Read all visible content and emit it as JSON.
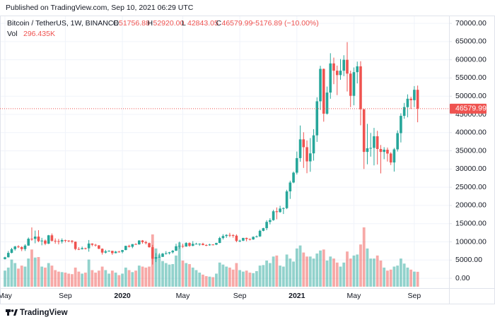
{
  "header": {
    "published": "Published on TradingView.com, Sep 10, 2021 06:29 UTC",
    "symbol": "Bitcoin / TetherUS, 1W, BINANCE",
    "ohlc": [
      {
        "key": "O",
        "value": "51756.88"
      },
      {
        "key": "H",
        "value": "52920.00"
      },
      {
        "key": "L",
        "value": "42843.05"
      },
      {
        "key": "C",
        "value": "46579.99"
      }
    ],
    "change": "−5176.89 (−10.00%)",
    "vol_key": "Vol",
    "vol_value": "296.435K"
  },
  "chart_data": {
    "type": "candlestick",
    "categories": [
      "May",
      null,
      null,
      null,
      null,
      null,
      null,
      null,
      null,
      null,
      null,
      null,
      null,
      null,
      null,
      null,
      null,
      null,
      "Sep",
      null,
      null,
      null,
      null,
      null,
      null,
      null,
      null,
      null,
      null,
      null,
      null,
      null,
      null,
      null,
      null,
      "2020",
      null,
      null,
      null,
      null,
      null,
      null,
      null,
      null,
      null,
      null,
      null,
      null,
      null,
      null,
      null,
      null,
      null,
      "May",
      null,
      null,
      null,
      null,
      null,
      null,
      null,
      null,
      null,
      null,
      null,
      null,
      null,
      null,
      null,
      null,
      "Sep",
      null,
      null,
      null,
      null,
      null,
      null,
      null,
      null,
      null,
      null,
      null,
      null,
      null,
      null,
      null,
      null,
      "2021",
      null,
      null,
      null,
      null,
      null,
      null,
      null,
      null,
      null,
      null,
      null,
      null,
      null,
      null,
      null,
      null,
      "May",
      null,
      null,
      null,
      null,
      null,
      null,
      null,
      null,
      null,
      null,
      null,
      null,
      null,
      null,
      null,
      null,
      null,
      "Sep",
      null
    ],
    "open": [
      5270,
      5770,
      6970,
      8000,
      8720,
      8570,
      8010,
      8980,
      10850,
      10820,
      11450,
      10200,
      10350,
      9500,
      11800,
      10300,
      10200,
      10100,
      10480,
      10360,
      10300,
      10050,
      8040,
      7990,
      8270,
      8230,
      9540,
      9200,
      9040,
      8110,
      7050,
      7400,
      7520,
      6900,
      7320,
      7250,
      7750,
      8900,
      8650,
      9380,
      9320,
      10370,
      9930,
      9660,
      8530,
      5360,
      5830,
      5880,
      6770,
      6880,
      7140,
      7550,
      8800,
      8900,
      8720,
      9680,
      8900,
      9450,
      9470,
      9480,
      9120,
      9070,
      9280,
      9230,
      9700,
      11050,
      11600,
      11900,
      11850,
      11700,
      10250,
      10330,
      11080,
      10780,
      10670,
      11380,
      11500,
      13030,
      13760,
      15480,
      15960,
      18400,
      18180,
      19150,
      19260,
      23860,
      26300,
      29000,
      33000,
      38150,
      36000,
      32100,
      34300,
      39250,
      48600,
      57500,
      45200,
      51000,
      59000,
      57000,
      55800,
      57000,
      60000,
      56200,
      50100,
      56600,
      58200,
      46400,
      34700,
      35700,
      35800,
      39000,
      35500,
      34700,
      35300,
      34250,
      31800,
      35400,
      39850,
      44600,
      47000,
      49300,
      48900,
      51756.88
    ],
    "high": [
      5900,
      7500,
      8350,
      8900,
      9090,
      8800,
      9350,
      11200,
      13970,
      13100,
      13200,
      11100,
      10650,
      11900,
      12300,
      10950,
      10800,
      10950,
      10600,
      10450,
      10500,
      10100,
      8550,
      8700,
      8400,
      10500,
      9600,
      9450,
      9100,
      8200,
      7800,
      7700,
      7580,
      7500,
      7550,
      7780,
      8950,
      9200,
      9400,
      9620,
      10450,
      10500,
      10300,
      9800,
      9150,
      6900,
      6900,
      6950,
      7450,
      7250,
      7750,
      9480,
      10050,
      9500,
      9900,
      9850,
      10200,
      9750,
      9600,
      9750,
      9350,
      9480,
      9350,
      9750,
      11400,
      12100,
      12100,
      12480,
      12100,
      12050,
      10600,
      11100,
      11180,
      10950,
      11500,
      11750,
      13350,
      13860,
      15950,
      16500,
      18800,
      19450,
      19900,
      19450,
      24300,
      26800,
      29300,
      34800,
      41950,
      40100,
      37850,
      38500,
      40950,
      49700,
      58350,
      57600,
      52650,
      61800,
      60600,
      58400,
      60200,
      61250,
      64850,
      57000,
      57900,
      59500,
      59600,
      46500,
      42400,
      39900,
      41300,
      40500,
      36600,
      36000,
      35900,
      34600,
      35800,
      40600,
      45300,
      48150,
      50500,
      49800,
      52780,
      52920
    ],
    "low": [
      5150,
      5700,
      6850,
      7600,
      8300,
      7450,
      7500,
      8900,
      10300,
      9600,
      9900,
      9050,
      9100,
      9400,
      10050,
      9500,
      9300,
      9550,
      9850,
      9900,
      9600,
      7700,
      7750,
      7900,
      7900,
      7300,
      8800,
      8700,
      8000,
      6500,
      6800,
      7300,
      6440,
      6850,
      7050,
      6850,
      7700,
      8450,
      8250,
      9250,
      9200,
      9500,
      9300,
      8400,
      3780,
      4450,
      5650,
      5850,
      6500,
      6550,
      6800,
      7500,
      8100,
      8300,
      8650,
      8650,
      8800,
      9300,
      8900,
      9050,
      8830,
      8930,
      9050,
      9100,
      9650,
      10650,
      11100,
      11300,
      11150,
      9900,
      9900,
      10200,
      10150,
      10400,
      10550,
      11200,
      11350,
      12900,
      13200,
      14800,
      15800,
      16200,
      18000,
      17650,
      19000,
      21800,
      26100,
      28500,
      32000,
      30300,
      28850,
      29240,
      32300,
      37450,
      46200,
      43000,
      44950,
      49300,
      53300,
      50300,
      54500,
      55500,
      51300,
      47000,
      47500,
      53500,
      42000,
      30000,
      31300,
      33400,
      31000,
      31250,
      28800,
      32700,
      32050,
      31100,
      29300,
      34800,
      37300,
      43800,
      44200,
      46500,
      47000,
      42843.05
    ],
    "close": [
      5770,
      6970,
      8000,
      8720,
      8570,
      8010,
      8980,
      10850,
      10820,
      11450,
      10200,
      10350,
      9500,
      11800,
      10300,
      10200,
      10100,
      10480,
      10360,
      10300,
      10050,
      8040,
      7990,
      8270,
      8230,
      9540,
      9200,
      9040,
      8110,
      7050,
      7400,
      7520,
      6900,
      7320,
      7250,
      7750,
      8900,
      8650,
      9380,
      9320,
      10370,
      9930,
      9660,
      8530,
      5360,
      5830,
      5880,
      6770,
      6880,
      7140,
      7550,
      8800,
      8900,
      8720,
      9680,
      8900,
      9450,
      9470,
      9480,
      9120,
      9070,
      9280,
      9230,
      9700,
      11050,
      11600,
      11900,
      11850,
      11700,
      10250,
      10330,
      11080,
      10780,
      10670,
      11380,
      11500,
      13030,
      13760,
      15480,
      15960,
      18400,
      18180,
      19150,
      19260,
      23860,
      26300,
      29000,
      33000,
      38150,
      36000,
      32100,
      34300,
      39250,
      48600,
      57500,
      45200,
      51000,
      59000,
      57000,
      55800,
      57000,
      60000,
      56200,
      50100,
      56600,
      58200,
      46400,
      34700,
      35700,
      35800,
      39000,
      35500,
      34700,
      35300,
      34250,
      31800,
      35400,
      39850,
      44600,
      47000,
      49300,
      48900,
      51756.88,
      46579.99
    ],
    "volume": [
      320000,
      380000,
      540000,
      470000,
      360000,
      420000,
      400000,
      560000,
      740000,
      580000,
      590000,
      400000,
      380000,
      470000,
      420000,
      330000,
      300000,
      290000,
      280000,
      260000,
      250000,
      380000,
      300000,
      260000,
      280000,
      540000,
      330000,
      280000,
      320000,
      400000,
      330000,
      260000,
      320000,
      280000,
      230000,
      260000,
      380000,
      330000,
      290000,
      320000,
      420000,
      400000,
      380000,
      400000,
      1040000,
      760000,
      640000,
      510000,
      470000,
      440000,
      450000,
      620000,
      880000,
      520000,
      470000,
      450000,
      380000,
      330000,
      280000,
      240000,
      210000,
      200000,
      190000,
      260000,
      480000,
      440000,
      400000,
      380000,
      340000,
      470000,
      330000,
      300000,
      320000,
      280000,
      270000,
      310000,
      420000,
      430000,
      520000,
      470000,
      600000,
      620000,
      420000,
      400000,
      640000,
      560000,
      500000,
      760000,
      820000,
      680000,
      600000,
      600000,
      560000,
      660000,
      720000,
      740000,
      520000,
      600000,
      560000,
      480000,
      400000,
      480000,
      700000,
      560000,
      620000,
      640000,
      840000,
      1180000,
      760000,
      560000,
      560000,
      620000,
      520000,
      380000,
      320000,
      340000,
      400000,
      420000,
      560000,
      460000,
      380000,
      340000,
      300000,
      296435
    ],
    "up_color": "#26a69a",
    "down_color": "#ef5350",
    "ylim": [
      -2700,
      72150
    ],
    "yticks": [
      {
        "value": 0,
        "label": "0.00"
      },
      {
        "value": 5000,
        "label": "5000.00"
      },
      {
        "value": 10000,
        "label": "10000.00"
      },
      {
        "value": 15000,
        "label": "15000.00"
      },
      {
        "value": 20000,
        "label": "20000.00"
      },
      {
        "value": 25000,
        "label": "25000.00"
      },
      {
        "value": 30000,
        "label": "30000.00"
      },
      {
        "value": 35000,
        "label": "35000.00"
      },
      {
        "value": 40000,
        "label": "40000.00"
      },
      {
        "value": 45000,
        "label": "45000.00"
      },
      {
        "value": 50000,
        "label": "50000.00"
      },
      {
        "value": 55000,
        "label": "55000.00"
      },
      {
        "value": 60000,
        "label": "60000.00"
      },
      {
        "value": 65000,
        "label": "65000.00"
      },
      {
        "value": 70000,
        "label": "70000.00"
      }
    ],
    "grid": true
  },
  "footer": {
    "brand": "TradingView"
  }
}
